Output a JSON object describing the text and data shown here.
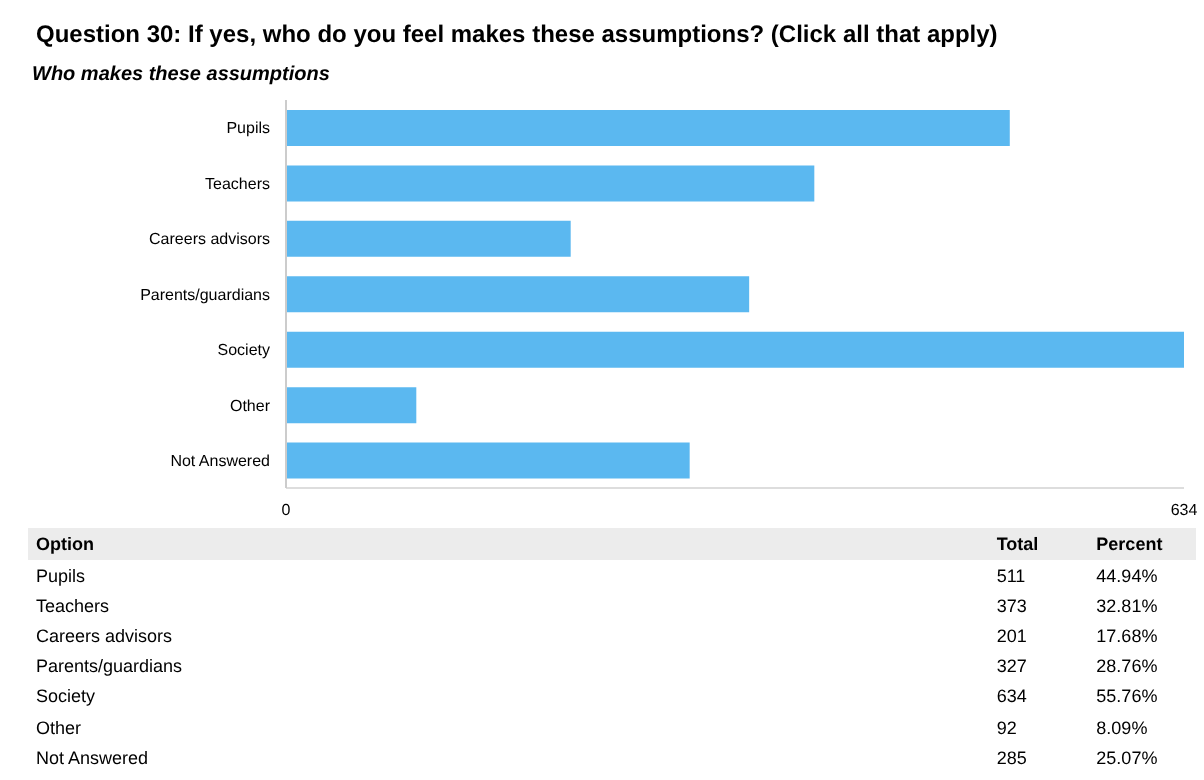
{
  "chart_data": [
    {
      "type": "bar",
      "orientation": "horizontal",
      "title": "Question 30: If yes, who do you feel makes these assumptions? (Click all that apply)",
      "subtitle": "Who makes these assumptions",
      "categories": [
        "Pupils",
        "Teachers",
        "Careers advisors",
        "Parents/guardians",
        "Society",
        "Other",
        "Not Answered"
      ],
      "values": [
        511,
        373,
        201,
        327,
        634,
        92,
        285
      ],
      "color": "#5bb8f0",
      "xlim": [
        0,
        634
      ],
      "xticks": [
        0,
        634
      ],
      "grid": false,
      "legend": false
    },
    {
      "type": "other",
      "annotations": [
        "Option",
        "Total",
        "Percent",
        "Pupils",
        "511",
        "44.94%",
        "Teachers",
        "373",
        "32.81%",
        "Careers advisors",
        "201",
        "17.68%",
        "Parents/guardians",
        "327",
        "28.76%",
        "Society",
        "634",
        "55.76%",
        "Other",
        "92",
        "8.09%",
        "Not Answered",
        "285",
        "25.07%"
      ]
    }
  ]
}
